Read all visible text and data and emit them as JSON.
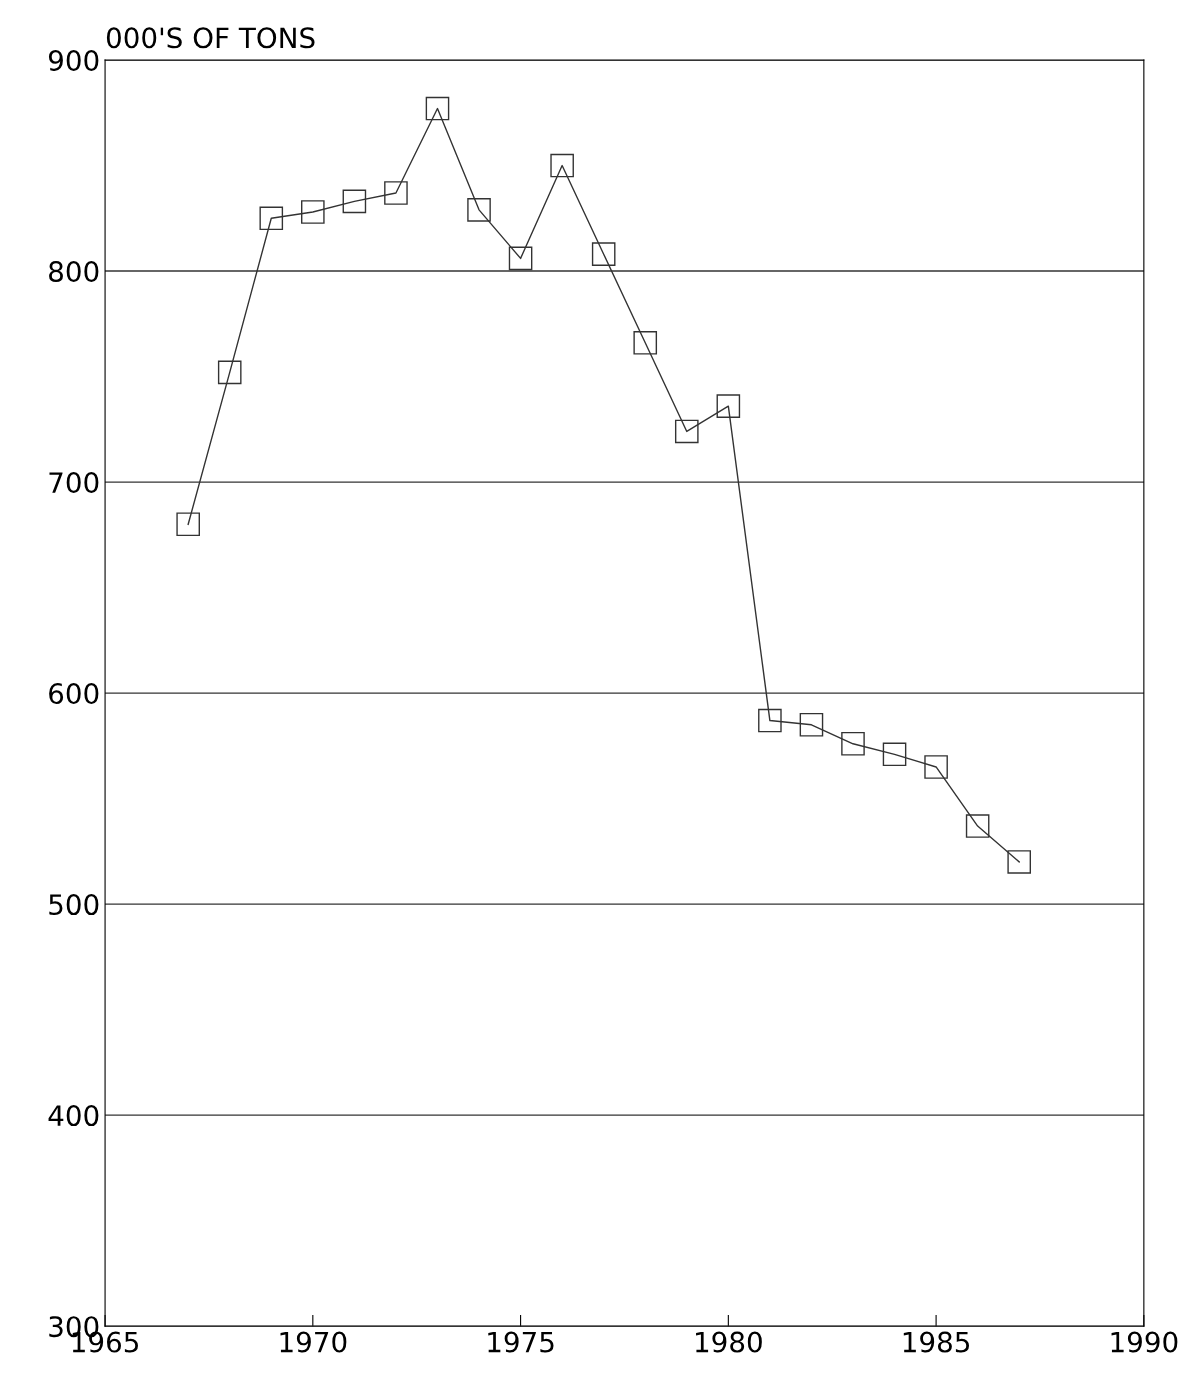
{
  "chart_data": {
    "type": "line",
    "ylabel": "000'S OF TONS",
    "x": [
      1967,
      1968,
      1969,
      1970,
      1971,
      1972,
      1973,
      1974,
      1975,
      1976,
      1977,
      1978,
      1979,
      1980,
      1981,
      1982,
      1983,
      1984,
      1985,
      1986,
      1987
    ],
    "series": [
      {
        "color": "#333333",
        "values": [
          680,
          752,
          825,
          828,
          833,
          837,
          877,
          829,
          806,
          850,
          808,
          766,
          724,
          736,
          587,
          585,
          576,
          571,
          565,
          537,
          520
        ]
      }
    ],
    "marker": "square",
    "line_style": "solid",
    "xlim": [
      1965,
      1990
    ],
    "xticks": [
      1965,
      1970,
      1975,
      1980,
      1985,
      1990
    ],
    "ylim": [
      300,
      900
    ],
    "yticks": [
      300,
      400,
      500,
      600,
      700,
      800,
      900
    ],
    "grid": "y",
    "legend": false
  }
}
